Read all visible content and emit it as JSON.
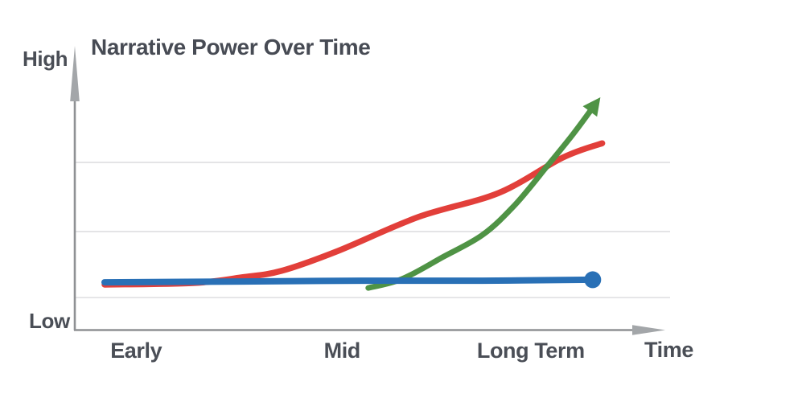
{
  "chart_data": {
    "type": "line",
    "title": "Narrative Power Over Time",
    "y_axis": {
      "top_label": "High",
      "bottom_label": "Low"
    },
    "x_axis": {
      "label": "Time",
      "ticks": [
        {
          "label": "Early",
          "x_pct": 10.3
        },
        {
          "label": "Mid",
          "x_pct": 44.9
        },
        {
          "label": "Long Term",
          "x_pct": 76.6
        }
      ]
    },
    "grid": true,
    "legend": "none",
    "y_range_pct": [
      0,
      100
    ],
    "gridlines_y_pct": [
      12.4,
      37.9,
      64.6
    ],
    "series": [
      {
        "name": "red-gradual-rise",
        "color": "#e23f3a",
        "stroke_width": 7.5,
        "end_marker": "none",
        "points_pct": [
          [
            5.0,
            17.4
          ],
          [
            19.9,
            18.0
          ],
          [
            28.0,
            20.2
          ],
          [
            34.7,
            22.7
          ],
          [
            44.2,
            30.4
          ],
          [
            57.7,
            43.5
          ],
          [
            71.2,
            52.8
          ],
          [
            82.0,
            66.5
          ],
          [
            88.6,
            72.0
          ]
        ]
      },
      {
        "name": "green-late-exponential",
        "color": "#4f9345",
        "stroke_width": 7,
        "end_marker": "arrow",
        "points_pct": [
          [
            49.3,
            16.1
          ],
          [
            55.0,
            19.6
          ],
          [
            61.8,
            28.0
          ],
          [
            68.5,
            36.6
          ],
          [
            73.9,
            48.1
          ],
          [
            79.3,
            63.0
          ],
          [
            83.6,
            75.2
          ],
          [
            86.8,
            85.1
          ]
        ]
      },
      {
        "name": "blue-flat-steady",
        "color": "#2970b6",
        "stroke_width": 8,
        "end_marker": "dot",
        "points_pct": [
          [
            5.0,
            18.3
          ],
          [
            28.0,
            18.6
          ],
          [
            48.2,
            18.9
          ],
          [
            68.5,
            18.9
          ],
          [
            87.0,
            19.3
          ]
        ]
      }
    ]
  },
  "colors": {
    "background": "#ffffff",
    "text": "#4a4e56",
    "axis": "#8f9194",
    "axis_arrow": "#a3a6a9",
    "gridline": "#dbdcdd"
  }
}
